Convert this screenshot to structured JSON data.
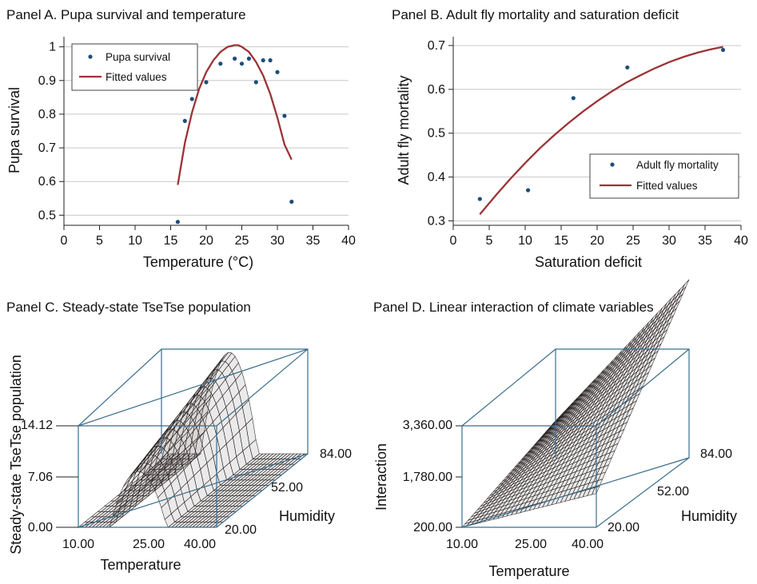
{
  "chart_data": [
    {
      "panel": "A",
      "type": "scatter",
      "title": "Panel A. Pupa survival and temperature",
      "xlabel": "Temperature (°C)",
      "ylabel": "Pupa survival",
      "xlim": [
        0,
        40
      ],
      "ylim": [
        0.47,
        1.03
      ],
      "xticks": [
        "0",
        "5",
        "10",
        "15",
        "20",
        "25",
        "30",
        "35",
        "40"
      ],
      "yticks": [
        "0.5",
        "0.6",
        "0.7",
        "0.8",
        "0.9",
        "1"
      ],
      "grid": true,
      "legend_position": "top-left",
      "series": [
        {
          "name": "Pupa survival",
          "kind": "points",
          "color": "#1f4e79",
          "x": [
            16,
            17,
            18,
            20,
            22,
            24,
            25,
            26,
            27,
            28,
            29,
            30,
            31,
            32
          ],
          "y": [
            0.48,
            0.78,
            0.845,
            0.895,
            0.95,
            0.965,
            0.95,
            0.965,
            0.895,
            0.96,
            0.96,
            0.925,
            0.795,
            0.54
          ]
        },
        {
          "name": "Fitted values",
          "kind": "line",
          "color": "#9c3336",
          "x": [
            16,
            17,
            18,
            19,
            20,
            21,
            22,
            23,
            24,
            24.5,
            25,
            26,
            27,
            28,
            29,
            30,
            31,
            32
          ],
          "y": [
            0.59,
            0.715,
            0.805,
            0.875,
            0.925,
            0.96,
            0.985,
            1.0,
            1.005,
            1.005,
            1.0,
            0.985,
            0.955,
            0.915,
            0.86,
            0.79,
            0.71,
            0.665
          ]
        }
      ]
    },
    {
      "panel": "B",
      "type": "scatter",
      "title": "Panel B. Adult fly mortality and saturation deficit",
      "xlabel": "Saturation deficit",
      "ylabel": "Adult fly mortality",
      "xlim": [
        0,
        40
      ],
      "ylim": [
        0.29,
        0.72
      ],
      "xticks": [
        "0",
        "5",
        "10",
        "15",
        "20",
        "25",
        "30",
        "35",
        "40"
      ],
      "yticks": [
        "0.3",
        "0.4",
        "0.5",
        "0.6",
        "0.7"
      ],
      "grid": true,
      "legend_position": "bottom-right",
      "series": [
        {
          "name": "Adult fly mortality",
          "kind": "points",
          "color": "#1f4e79",
          "x": [
            3.7,
            10.4,
            16.7,
            24.2,
            37.5
          ],
          "y": [
            0.35,
            0.37,
            0.58,
            0.65,
            0.69
          ]
        },
        {
          "name": "Fitted values",
          "kind": "line",
          "color": "#9c3336",
          "x": [
            3.7,
            6,
            8,
            10,
            12,
            14,
            16,
            18,
            20,
            22,
            24,
            26,
            28,
            30,
            32,
            34,
            36,
            37.5
          ],
          "y": [
            0.315,
            0.36,
            0.397,
            0.432,
            0.465,
            0.495,
            0.523,
            0.549,
            0.573,
            0.595,
            0.615,
            0.632,
            0.648,
            0.662,
            0.674,
            0.684,
            0.692,
            0.697
          ]
        }
      ]
    },
    {
      "panel": "C",
      "type": "surface3d",
      "title": "Panel C. Steady-state TseTse population",
      "xlabel": "Temperature",
      "ylabel": "Humidity",
      "zlabel": "Steady-state TseTse population",
      "xticks": [
        "10.00",
        "25.00",
        "40.00"
      ],
      "yticks": [
        "20.00",
        "52.00",
        "84.00"
      ],
      "zticks": [
        "0.00",
        "7.06",
        "14.12"
      ],
      "xrange": [
        10,
        40
      ],
      "yrange": [
        20,
        84
      ],
      "zrange": [
        0,
        14.12
      ]
    },
    {
      "panel": "D",
      "type": "surface3d",
      "title": "Panel D. Linear interaction of climate variables",
      "xlabel": "Temperature",
      "ylabel": "Humidity",
      "zlabel": "Interaction",
      "xticks": [
        "10.00",
        "25.00",
        "40.00"
      ],
      "yticks": [
        "20.00",
        "52.00",
        "84.00"
      ],
      "zticks": [
        "200.00",
        "1,780.00",
        "3,360.00"
      ],
      "xrange": [
        10,
        40
      ],
      "yrange": [
        20,
        84
      ],
      "zrange": [
        200,
        3360
      ]
    }
  ],
  "colors": {
    "points": "#1f4e79",
    "fit": "#9c3336",
    "box3d": "#3a6d8c",
    "mesh": "#2b2424"
  }
}
